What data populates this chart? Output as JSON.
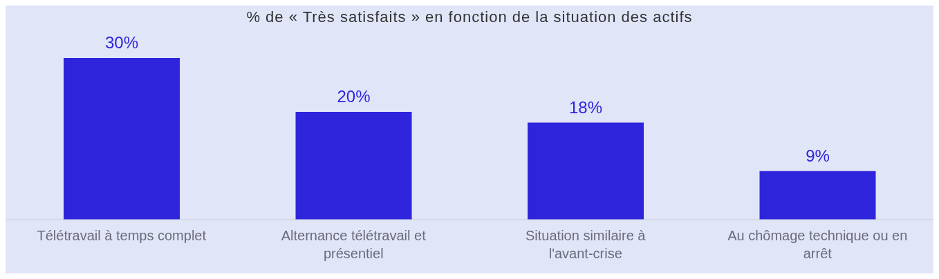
{
  "chart_data": {
    "type": "bar",
    "title": "% de « Très satisfaits » en fonction de la situation des actifs",
    "categories": [
      "Télétravail à temps complet",
      "Alternance télétravail et présentiel",
      "Situation similaire à l'avant-crise",
      "Au chômage technique ou en arrêt"
    ],
    "values": [
      30,
      20,
      18,
      9
    ],
    "value_labels": [
      "30%",
      "20%",
      "18%",
      "9%"
    ],
    "color": "#2e24dc",
    "grid": false,
    "legend": false
  }
}
